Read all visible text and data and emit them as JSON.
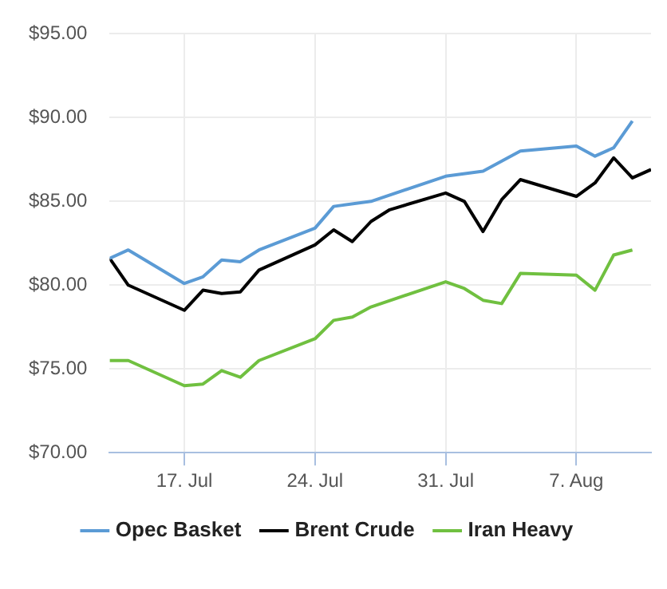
{
  "chart_data": {
    "type": "line",
    "x": [
      "--07-13",
      "--07-14",
      "--07-17",
      "--07-18",
      "--07-19",
      "--07-20",
      "--07-21",
      "--07-24",
      "--07-25",
      "--07-27",
      "--07-31",
      "--08-02",
      "--08-04",
      "--08-07",
      "--08-08",
      "--08-09",
      "--08-10"
    ],
    "series": [
      {
        "name": "Opec Basket",
        "color": "#5b9bd5",
        "values": [
          81.6,
          82.1,
          80.1,
          80.5,
          81.5,
          81.4,
          82.1,
          83.4,
          84.7,
          85.0,
          86.5,
          86.8,
          88.0,
          88.3,
          87.7,
          88.2,
          89.8
        ]
      },
      {
        "name": "Brent Crude",
        "color": "#000000",
        "x": [
          "--07-13",
          "--07-14",
          "--07-17",
          "--07-18",
          "--07-19",
          "--07-20",
          "--07-21",
          "--07-24",
          "--07-25",
          "--07-26",
          "--07-27",
          "--07-28",
          "--07-31",
          "--08-01",
          "--08-02",
          "--08-03",
          "--08-04",
          "--08-07",
          "--08-08",
          "--08-09",
          "--08-10",
          "--08-11"
        ],
        "values": [
          81.6,
          80.0,
          78.5,
          79.7,
          79.5,
          79.6,
          80.9,
          82.4,
          83.3,
          82.6,
          83.8,
          84.5,
          85.5,
          85.0,
          83.2,
          85.1,
          86.3,
          85.3,
          86.1,
          87.6,
          86.4,
          86.9
        ]
      },
      {
        "name": "Iran Heavy",
        "color": "#70c040",
        "x": [
          "--07-13",
          "--07-14",
          "--07-17",
          "--07-18",
          "--07-19",
          "--07-20",
          "--07-21",
          "--07-24",
          "--07-25",
          "--07-26",
          "--07-27",
          "--07-31",
          "--08-01",
          "--08-02",
          "--08-03",
          "--08-04",
          "--08-07",
          "--08-08",
          "--08-09",
          "--08-10"
        ],
        "values": [
          75.5,
          75.5,
          74.0,
          74.1,
          74.9,
          74.5,
          75.5,
          76.8,
          77.9,
          78.1,
          78.7,
          80.2,
          79.8,
          79.1,
          78.9,
          80.7,
          80.6,
          79.7,
          81.8,
          82.1
        ]
      }
    ],
    "xlim": [
      "--07-13",
      "--08-11"
    ],
    "xticks": [
      {
        "value": "--07-17",
        "label": "17. Jul"
      },
      {
        "value": "--07-24",
        "label": "24. Jul"
      },
      {
        "value": "--07-31",
        "label": "31. Jul"
      },
      {
        "value": "--08-07",
        "label": "7. Aug"
      }
    ],
    "ylim": [
      70,
      95
    ],
    "yticks": [
      {
        "value": 70,
        "label": "$70.00"
      },
      {
        "value": 75,
        "label": "$75.00"
      },
      {
        "value": 80,
        "label": "$80.00"
      },
      {
        "value": 85,
        "label": "$85.00"
      },
      {
        "value": 90,
        "label": "$90.00"
      },
      {
        "value": 95,
        "label": "$95.00"
      }
    ],
    "grid": true,
    "legend": "bottom",
    "marker": "none",
    "line_style": "solid"
  }
}
